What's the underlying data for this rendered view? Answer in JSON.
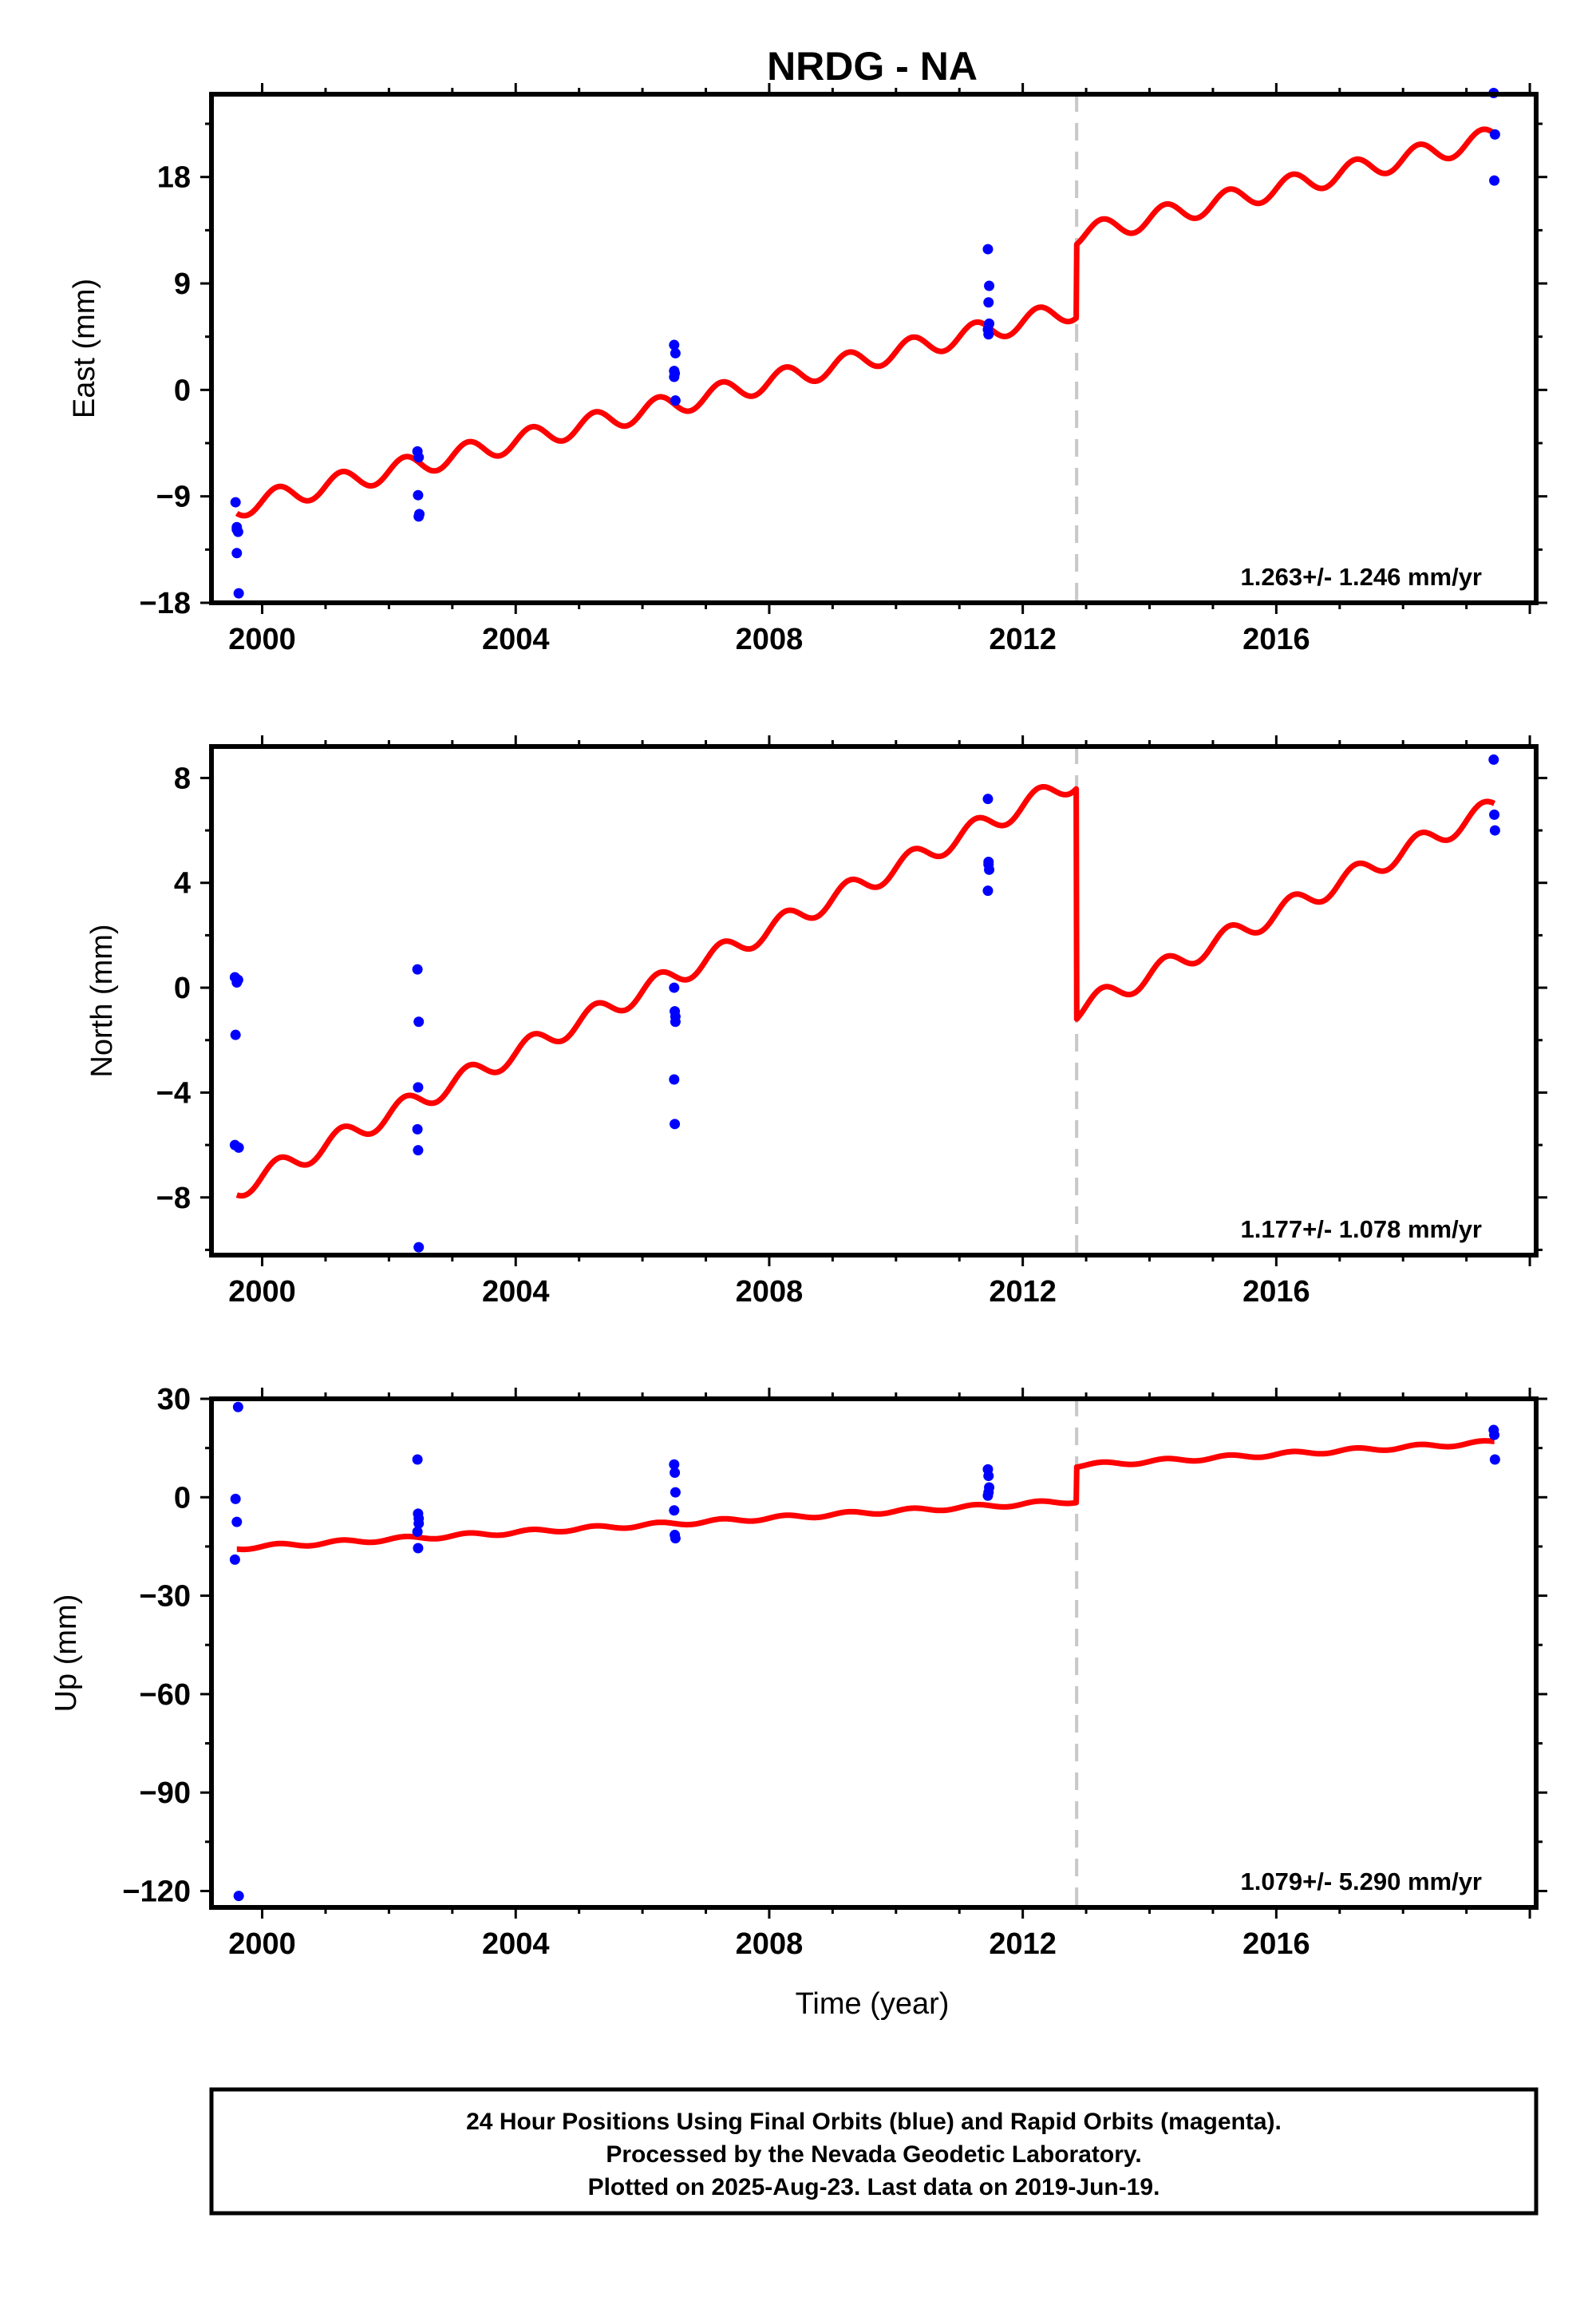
{
  "title": "NRDG - NA",
  "x_axis_label": "Time (year)",
  "colors": {
    "final_orbits": "#0000ff",
    "model": "#ff0000",
    "event_line": "#c8c8c8",
    "frame": "#000000"
  },
  "chart_data": [
    {
      "type": "scatter",
      "ylabel": "East (mm)",
      "xlim": [
        1999.2,
        2020.1
      ],
      "ylim": [
        -18,
        25
      ],
      "xticks": [
        "2000",
        "2004",
        "2008",
        "2012",
        "2016"
      ],
      "yticks": [
        "−18",
        "−9",
        "0",
        "9",
        "18"
      ],
      "ytick_values": [
        -18,
        -9,
        0,
        9,
        18
      ],
      "rate_text": "1.263+/- 1.246 mm/yr",
      "event_line_x": 2012.85,
      "model": {
        "slope": 1.263,
        "intercept": -9.4,
        "ref_year": 2000,
        "offsets": [
          {
            "x": 2012.85,
            "dy": 6.2
          }
        ],
        "annual_amplitude": 0.9
      },
      "series": [
        {
          "x": [
            1999.58,
            1999.6,
            1999.62,
            1999.6,
            1999.63,
            1999.6
          ],
          "y": [
            -9.5,
            -11.8,
            -12.0,
            -13.8,
            -17.2,
            -11.6
          ]
        },
        {
          "x": [
            2002.45,
            2002.47,
            2002.46,
            2002.48,
            2002.47
          ],
          "y": [
            -5.2,
            -5.7,
            -8.9,
            -10.5,
            -10.7
          ]
        },
        {
          "x": [
            2006.5,
            2006.52,
            2006.51,
            2006.5,
            2006.52,
            2006.5
          ],
          "y": [
            3.8,
            3.1,
            1.4,
            1.1,
            -0.9,
            1.6
          ]
        },
        {
          "x": [
            2011.45,
            2011.47,
            2011.46,
            2011.45,
            2011.46,
            2011.47
          ],
          "y": [
            11.9,
            8.8,
            7.4,
            5.1,
            4.7,
            5.6
          ]
        },
        {
          "x": [
            2019.43,
            2019.45,
            2019.44
          ],
          "y": [
            25.1,
            21.6,
            17.7
          ]
        }
      ]
    },
    {
      "type": "scatter",
      "ylabel": "North (mm)",
      "xlim": [
        1999.2,
        2020.1
      ],
      "ylim": [
        -10.2,
        9.2
      ],
      "xticks": [
        "2000",
        "2004",
        "2008",
        "2012",
        "2016"
      ],
      "yticks": [
        "−8",
        "−4",
        "0",
        "4",
        "8"
      ],
      "ytick_values": [
        -8,
        -4,
        0,
        4,
        8
      ],
      "rate_text": "1.177+/- 1.078 mm/yr",
      "event_line_x": 2012.85,
      "model": {
        "slope": 1.177,
        "intercept": -7.2,
        "ref_year": 2000,
        "offsets": [
          {
            "x": 2012.85,
            "dy": -8.8
          }
        ],
        "annual_amplitude": 0.4
      },
      "series": [
        {
          "x": [
            1999.57,
            1999.6,
            1999.62,
            1999.58,
            1999.57,
            1999.63
          ],
          "y": [
            0.4,
            0.2,
            0.3,
            -1.8,
            -6.0,
            -6.1
          ]
        },
        {
          "x": [
            2002.45,
            2002.47,
            2002.46,
            2002.45,
            2002.46,
            2002.47
          ],
          "y": [
            0.7,
            -1.3,
            -3.8,
            -5.4,
            -6.2,
            -9.9
          ]
        },
        {
          "x": [
            2006.5,
            2006.51,
            2006.52,
            2006.5,
            2006.51,
            2006.52
          ],
          "y": [
            0.0,
            -0.9,
            -1.3,
            -3.5,
            -5.2,
            -1.1
          ]
        },
        {
          "x": [
            2011.45,
            2011.46,
            2011.47,
            2011.45,
            2011.46
          ],
          "y": [
            7.2,
            4.8,
            4.5,
            3.7,
            4.7
          ]
        },
        {
          "x": [
            2019.43,
            2019.44,
            2019.45
          ],
          "y": [
            8.7,
            6.6,
            6.0
          ]
        }
      ]
    },
    {
      "type": "scatter",
      "ylabel": "Up (mm)",
      "xlim": [
        1999.2,
        2020.1
      ],
      "ylim": [
        -125,
        30
      ],
      "xticks": [
        "2000",
        "2004",
        "2008",
        "2012",
        "2016"
      ],
      "yticks": [
        "30",
        "0",
        "−30",
        "−60",
        "−90",
        "−120"
      ],
      "ytick_values": [
        30,
        0,
        -30,
        -60,
        -90,
        -120
      ],
      "rate_text": "1.079+/- 5.290 mm/yr",
      "event_line_x": 2012.85,
      "model": {
        "slope": 1.079,
        "intercept": -15.0,
        "ref_year": 2000,
        "offsets": [
          {
            "x": 2012.85,
            "dy": 10.8
          }
        ],
        "annual_amplitude": 0.6
      },
      "series": [
        {
          "x": [
            1999.62,
            1999.58,
            1999.6,
            1999.57,
            1999.63
          ],
          "y": [
            27.5,
            -0.5,
            -7.5,
            -19.0,
            -121.5
          ]
        },
        {
          "x": [
            2002.45,
            2002.46,
            2002.47,
            2002.45,
            2002.46,
            2002.47
          ],
          "y": [
            11.5,
            -5.0,
            -8.0,
            -10.5,
            -15.5,
            -6.5
          ]
        },
        {
          "x": [
            2006.5,
            2006.51,
            2006.52,
            2006.5,
            2006.51,
            2006.52
          ],
          "y": [
            10.0,
            7.5,
            1.5,
            -4.0,
            -11.5,
            -12.5
          ]
        },
        {
          "x": [
            2011.45,
            2011.46,
            2011.47,
            2011.45,
            2011.46
          ],
          "y": [
            8.5,
            6.5,
            3.0,
            0.5,
            1.5
          ]
        },
        {
          "x": [
            2019.43,
            2019.44,
            2019.45
          ],
          "y": [
            20.5,
            19.0,
            11.5
          ]
        }
      ]
    }
  ],
  "footer": {
    "line1": "24 Hour Positions Using Final Orbits (blue) and Rapid Orbits (magenta).",
    "line2": "Processed by the Nevada Geodetic Laboratory.",
    "line3": "Plotted on 2025-Aug-23. Last data on 2019-Jun-19."
  }
}
